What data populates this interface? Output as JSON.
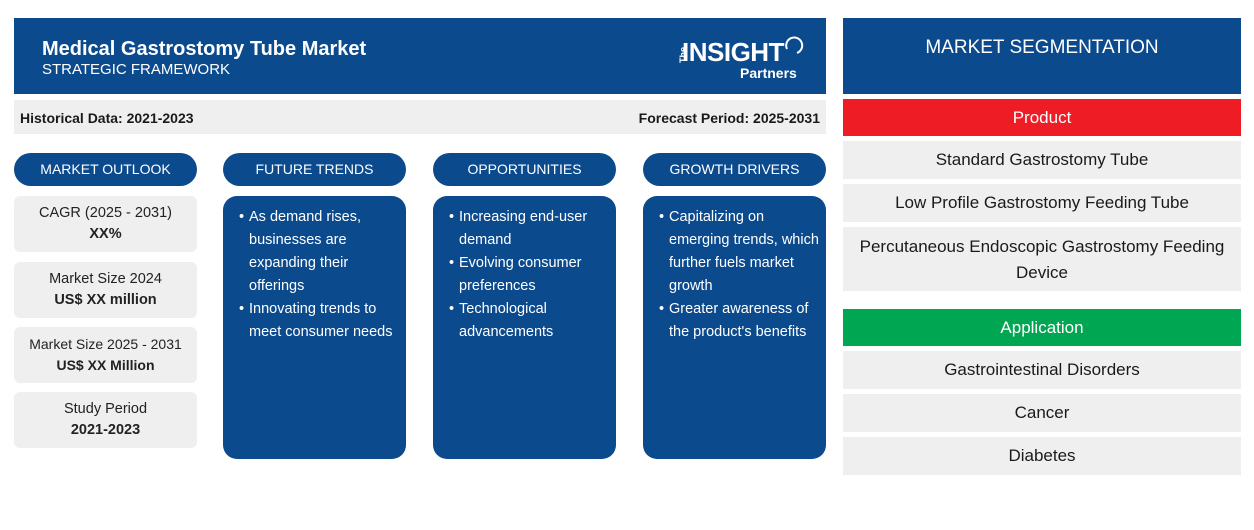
{
  "header": {
    "title": "Medical Gastrostomy Tube Market",
    "subtitle": "STRATEGIC FRAMEWORK",
    "logo": {
      "the": "The",
      "insight": "INSIGHT",
      "partners": "Partners"
    }
  },
  "period_bar": {
    "historical": "Historical Data: 2021-2023",
    "forecast": "Forecast Period: 2025-2031"
  },
  "market_outlook": {
    "heading": "MARKET OUTLOOK",
    "boxes": [
      {
        "label": "CAGR (2025 - 2031)",
        "value": "XX%"
      },
      {
        "label": "Market Size 2024",
        "value": "US$ XX million"
      },
      {
        "label": "Market Size 2025 - 2031",
        "value": "US$ XX Million"
      },
      {
        "label": "Study Period",
        "value": "2021-2023"
      }
    ]
  },
  "future_trends": {
    "heading": "FUTURE TRENDS",
    "items": [
      "As demand rises, businesses are expanding their offerings",
      "Innovating trends to meet consumer needs"
    ]
  },
  "opportunities": {
    "heading": "OPPORTUNITIES",
    "items": [
      "Increasing end-user demand",
      "Evolving consumer preferences",
      "Technological advancements"
    ]
  },
  "growth_drivers": {
    "heading": "GROWTH DRIVERS",
    "items": [
      "Capitalizing on emerging trends, which further fuels market growth",
      "Greater awareness of the product's benefits"
    ]
  },
  "segmentation": {
    "heading": "MARKET SEGMENTATION",
    "product": {
      "label": "Product",
      "color": "#ee1c25",
      "items": [
        "Standard Gastrostomy Tube",
        "Low Profile Gastrostomy Feeding Tube",
        "Percutaneous Endoscopic Gastrostomy Feeding Device"
      ]
    },
    "application": {
      "label": "Application",
      "color": "#00a651",
      "items": [
        "Gastrointestinal Disorders",
        "Cancer",
        "Diabetes"
      ]
    }
  },
  "colors": {
    "primary": "#0c4a8e",
    "light_gray": "#efefef"
  }
}
